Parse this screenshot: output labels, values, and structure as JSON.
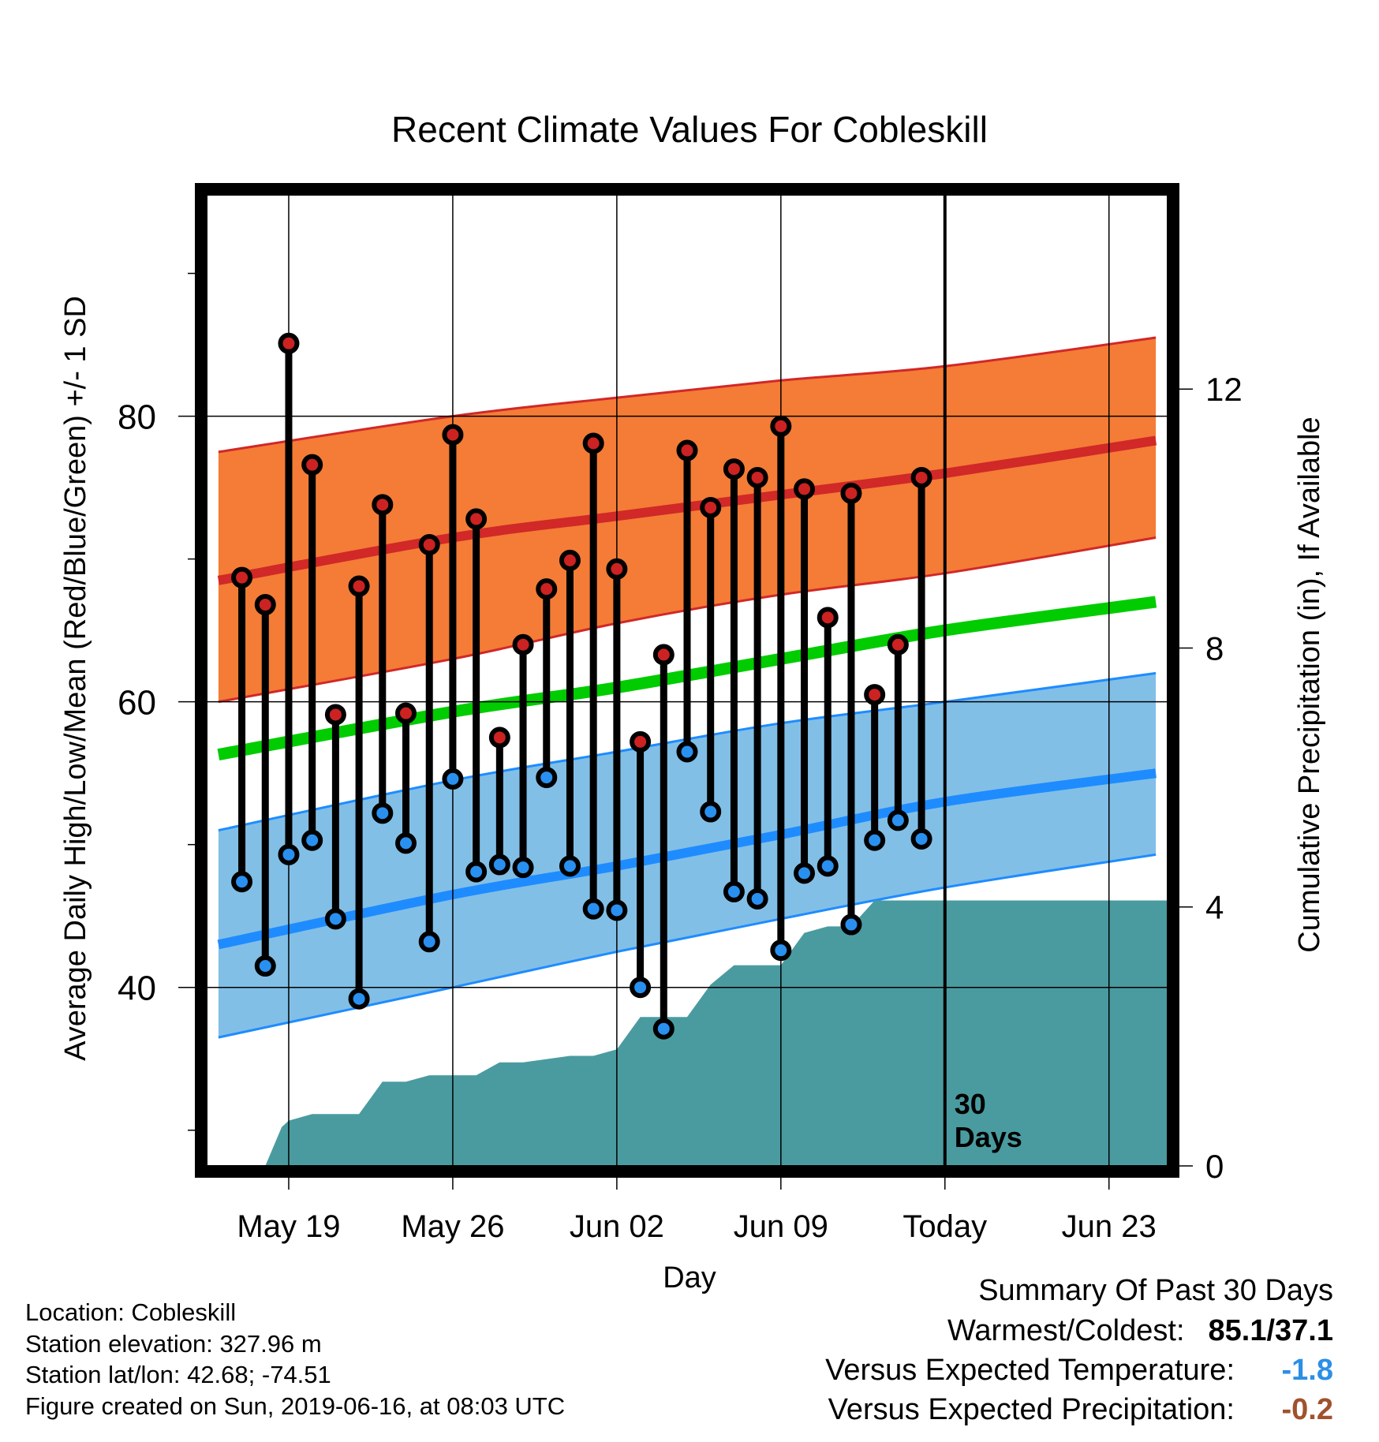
{
  "chart_data": {
    "type": "line",
    "title": "Recent Climate Values For Cobleskill",
    "xlabel": "Day",
    "ylabel": "Average Daily High/Low/Mean (Red/Blue/Green) +/- 1 SD",
    "y2label": "Cumulative Precipitation (in), If Available",
    "ylim": [
      27.5,
      95.5
    ],
    "y_ticks": [
      40,
      60,
      80
    ],
    "y2lim": [
      0,
      15
    ],
    "y2_ticks": [
      0,
      4,
      8,
      12
    ],
    "x_range": [
      -3.5,
      37.5
    ],
    "x_ticks": [
      {
        "day": 0,
        "label": "May 19"
      },
      {
        "day": 7,
        "label": "May 26"
      },
      {
        "day": 14,
        "label": "Jun 02"
      },
      {
        "day": 21,
        "label": "Jun 09"
      },
      {
        "day": 28,
        "label": "Today"
      },
      {
        "day": 35,
        "label": "Jun 23"
      }
    ],
    "today_day": 28,
    "today_annotation": "30 Days",
    "normals": {
      "x": [
        -3,
        7,
        14,
        21,
        28,
        37
      ],
      "high_mean": [
        68.5,
        71.5,
        73,
        74.5,
        76,
        78.3
      ],
      "high_upper": [
        77.5,
        80,
        81.3,
        82.5,
        83.5,
        85.5
      ],
      "high_lower": [
        60,
        63,
        65.5,
        67.5,
        69,
        71.5
      ],
      "avg_mean": [
        56.3,
        59.3,
        61,
        63,
        65,
        67
      ],
      "low_mean": [
        43,
        46.5,
        48.5,
        50.7,
        53,
        55
      ],
      "low_upper": [
        51,
        54.5,
        56.5,
        58.5,
        60,
        62
      ],
      "low_lower": [
        36.5,
        40,
        42.5,
        44.8,
        47,
        49.3
      ]
    },
    "daily": {
      "days": [
        -2,
        -1,
        0,
        1,
        2,
        3,
        4,
        5,
        6,
        7,
        8,
        9,
        10,
        11,
        12,
        13,
        14,
        15,
        16,
        17,
        18,
        19,
        20,
        21,
        22,
        23,
        24,
        25,
        26,
        27
      ],
      "highs": [
        68.7,
        66.8,
        85.1,
        76.6,
        59.1,
        68.1,
        73.8,
        59.2,
        71.0,
        78.7,
        72.8,
        57.5,
        64.0,
        67.9,
        69.9,
        78.1,
        69.3,
        57.2,
        63.3,
        77.6,
        73.6,
        76.3,
        75.7,
        79.3,
        74.9,
        65.9,
        74.6,
        60.5,
        64.0,
        75.7
      ],
      "lows": [
        47.4,
        41.5,
        49.3,
        50.3,
        44.8,
        39.2,
        52.2,
        50.1,
        43.2,
        54.6,
        48.1,
        48.6,
        48.4,
        54.7,
        48.5,
        45.5,
        45.4,
        40.0,
        37.1,
        56.5,
        52.3,
        46.7,
        46.2,
        42.6,
        48.0,
        48.5,
        44.4,
        50.3,
        51.7,
        50.4
      ]
    },
    "precip": {
      "x": [
        -1,
        -0.3,
        0,
        1,
        3,
        4,
        5,
        6,
        8,
        9,
        10,
        12,
        13,
        14,
        15,
        16,
        17,
        18,
        19,
        20,
        21,
        22,
        23,
        24,
        25,
        26,
        37.5
      ],
      "y": [
        0,
        0.6,
        0.7,
        0.8,
        0.8,
        1.3,
        1.3,
        1.4,
        1.4,
        1.6,
        1.6,
        1.7,
        1.7,
        1.8,
        2.3,
        2.3,
        2.3,
        2.8,
        3.1,
        3.1,
        3.1,
        3.6,
        3.7,
        3.7,
        4.1,
        4.1,
        4.1
      ]
    },
    "colors": {
      "high_band": "#f47c36",
      "high_mean": "#d12828",
      "avg_mean": "#00cc00",
      "low_band": "#82bfe6",
      "low_mean": "#1e8cff",
      "precip": "#4a9ba0",
      "high_marker": "#cc2222",
      "low_marker": "#2990f0"
    }
  },
  "info": {
    "location": "Location: Cobleskill",
    "elevation": "Station elevation: 327.96 m",
    "latlon": "Station lat/lon: 42.68; -74.51",
    "created": "Figure created on Sun, 2019-06-16, at 08:03 UTC"
  },
  "summary": {
    "title": "Summary Of Past 30 Days",
    "warm_cold_label": "Warmest/Coldest:",
    "warm_cold_value": "85.1/37.1",
    "temp_label": "Versus Expected Temperature:",
    "temp_value": "-1.8",
    "temp_color": "#2b8fe6",
    "precip_label": "Versus Expected Precipitation:",
    "precip_value": "-0.2",
    "precip_color": "#a0522d"
  }
}
